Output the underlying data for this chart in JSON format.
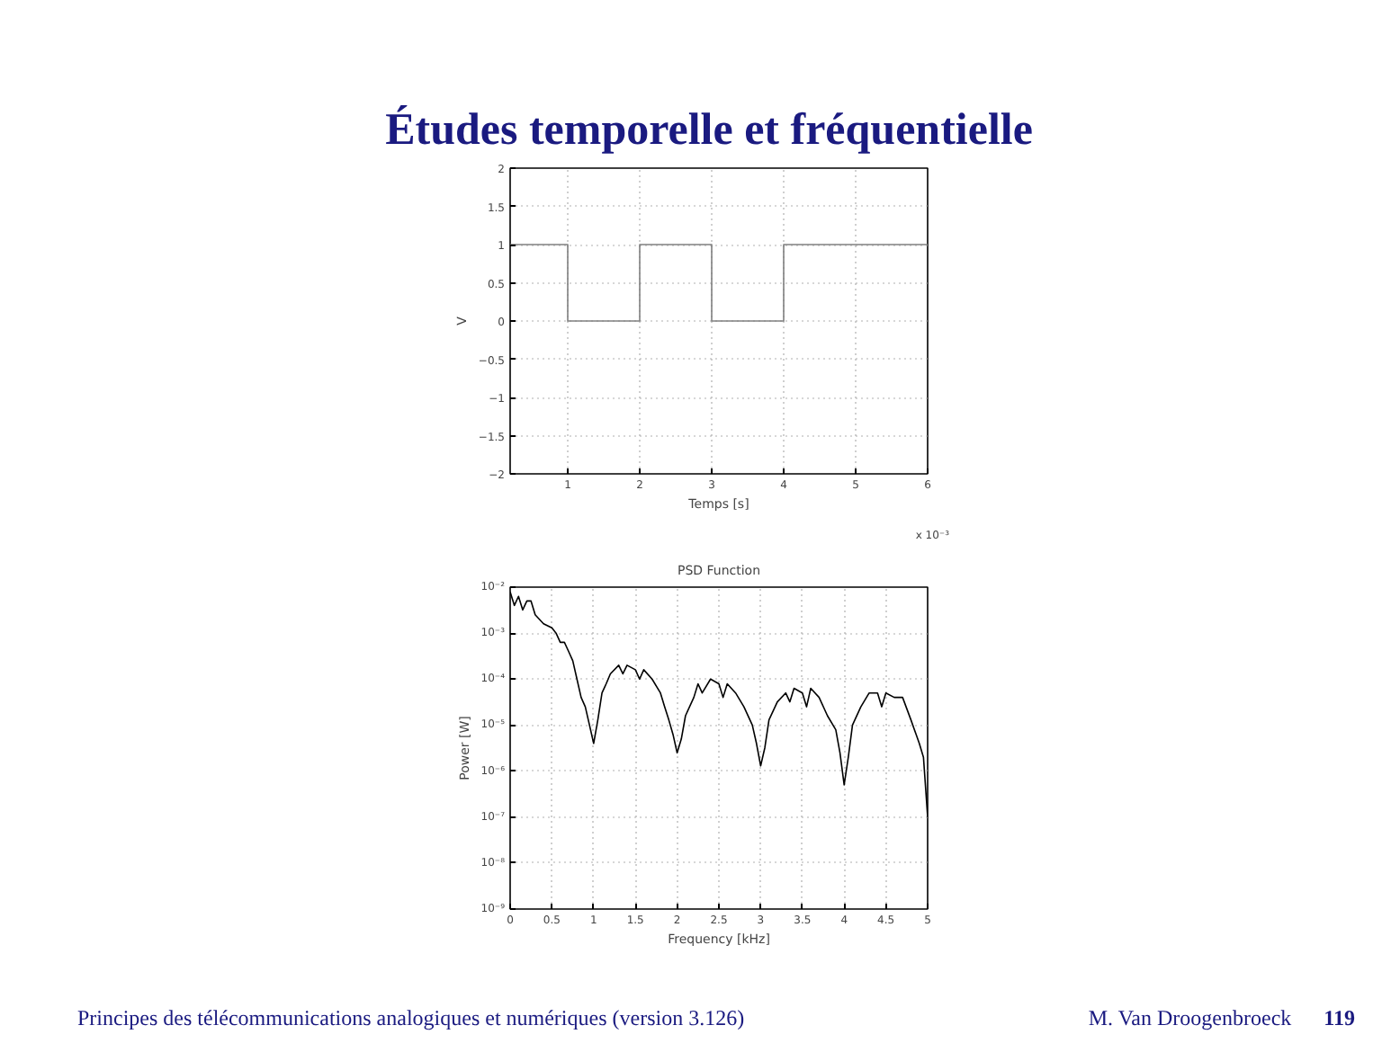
{
  "chart_data": [
    {
      "type": "step",
      "title": "Études temporelle et fréquentielle",
      "xlabel": "Temps [s]",
      "ylabel": "V",
      "annotations": [
        "x 10⁻³"
      ],
      "x": [
        0.2,
        1,
        2,
        3,
        4,
        6
      ],
      "series": [
        {
          "color": "#808080",
          "values": [
            1,
            0,
            1,
            0,
            1,
            1
          ]
        }
      ],
      "xlim": [
        0.2,
        6
      ],
      "xticks": [
        1,
        2,
        3,
        4,
        5,
        6
      ],
      "ylim": [
        -2,
        2
      ],
      "yticks": [
        -2,
        -1.5,
        -1,
        -0.5,
        0,
        0.5,
        1,
        1.5,
        2
      ],
      "grid": true,
      "line_style": "solid"
    },
    {
      "type": "line",
      "title": "PSD Function",
      "xlabel": "Frequency [kHz]",
      "ylabel": "Power [W]",
      "log": "y",
      "annotations": [
        "Principes des télécommunications analogiques et numériques (version 3.126)",
        "M. Van Droogenbroeck",
        "119"
      ],
      "x": [
        0,
        0.05,
        0.1,
        0.15,
        0.2,
        0.25,
        0.3,
        0.35,
        0.4,
        0.5,
        0.55,
        0.6,
        0.65,
        0.7,
        0.75,
        0.8,
        0.85,
        0.9,
        0.95,
        1.0,
        1.05,
        1.1,
        1.15,
        1.2,
        1.3,
        1.35,
        1.4,
        1.5,
        1.55,
        1.6,
        1.7,
        1.8,
        1.85,
        1.9,
        1.95,
        2.0,
        2.05,
        2.1,
        2.2,
        2.25,
        2.3,
        2.4,
        2.5,
        2.55,
        2.6,
        2.7,
        2.8,
        2.9,
        2.95,
        3.0,
        3.05,
        3.1,
        3.2,
        3.3,
        3.35,
        3.4,
        3.5,
        3.55,
        3.6,
        3.7,
        3.8,
        3.9,
        3.95,
        4.0,
        4.05,
        4.1,
        4.2,
        4.3,
        4.4,
        4.45,
        4.5,
        4.6,
        4.7,
        4.8,
        4.9,
        4.95,
        5.0
      ],
      "series": [
        {
          "color": "#000000",
          "values": [
            0.0079,
            0.004,
            0.0063,
            0.0032,
            0.005,
            0.005,
            0.0025,
            0.002,
            0.0016,
            0.0013,
            0.001,
            0.00063,
            0.00063,
            0.0004,
            0.00025,
            0.0001,
            4e-05,
            2.5e-05,
            1e-05,
            4e-06,
            1.3e-05,
            5e-05,
            7.9e-05,
            0.00013,
            0.0002,
            0.00013,
            0.0002,
            0.00016,
            0.0001,
            0.00016,
            0.0001,
            5e-05,
            2.5e-05,
            1.3e-05,
            6.3e-06,
            2.5e-06,
            5e-06,
            1.6e-05,
            4e-05,
            7.9e-05,
            5e-05,
            0.0001,
            7.9e-05,
            4e-05,
            7.9e-05,
            5e-05,
            2.5e-05,
            1e-05,
            4e-06,
            1.3e-06,
            3.2e-06,
            1.3e-05,
            3.2e-05,
            5e-05,
            3.2e-05,
            6.3e-05,
            5e-05,
            2.5e-05,
            6.3e-05,
            4e-05,
            1.6e-05,
            7.9e-06,
            2.5e-06,
            5e-07,
            2e-06,
            1e-05,
            2.5e-05,
            5e-05,
            5e-05,
            2.5e-05,
            5e-05,
            4e-05,
            4e-05,
            1.3e-05,
            4e-06,
            2e-06,
            1e-07
          ]
        }
      ],
      "xlim": [
        0,
        5
      ],
      "xticks": [
        0,
        0.5,
        1,
        1.5,
        2,
        2.5,
        3,
        3.5,
        4,
        4.5,
        5
      ],
      "ylim": [
        1e-09,
        0.01
      ],
      "yticks": [
        {
          "value": 1e-09,
          "label": "10⁻⁹"
        },
        {
          "value": 1e-08,
          "label": "10⁻⁸"
        },
        {
          "value": 1e-07,
          "label": "10⁻⁷"
        },
        {
          "value": 1e-06,
          "label": "10⁻⁶"
        },
        {
          "value": 1e-05,
          "label": "10⁻⁵"
        },
        {
          "value": 0.0001,
          "label": "10⁻⁴"
        },
        {
          "value": 0.001,
          "label": "10⁻³"
        },
        {
          "value": 0.01,
          "label": "10⁻²"
        }
      ],
      "grid": true,
      "line_style": "solid"
    }
  ]
}
